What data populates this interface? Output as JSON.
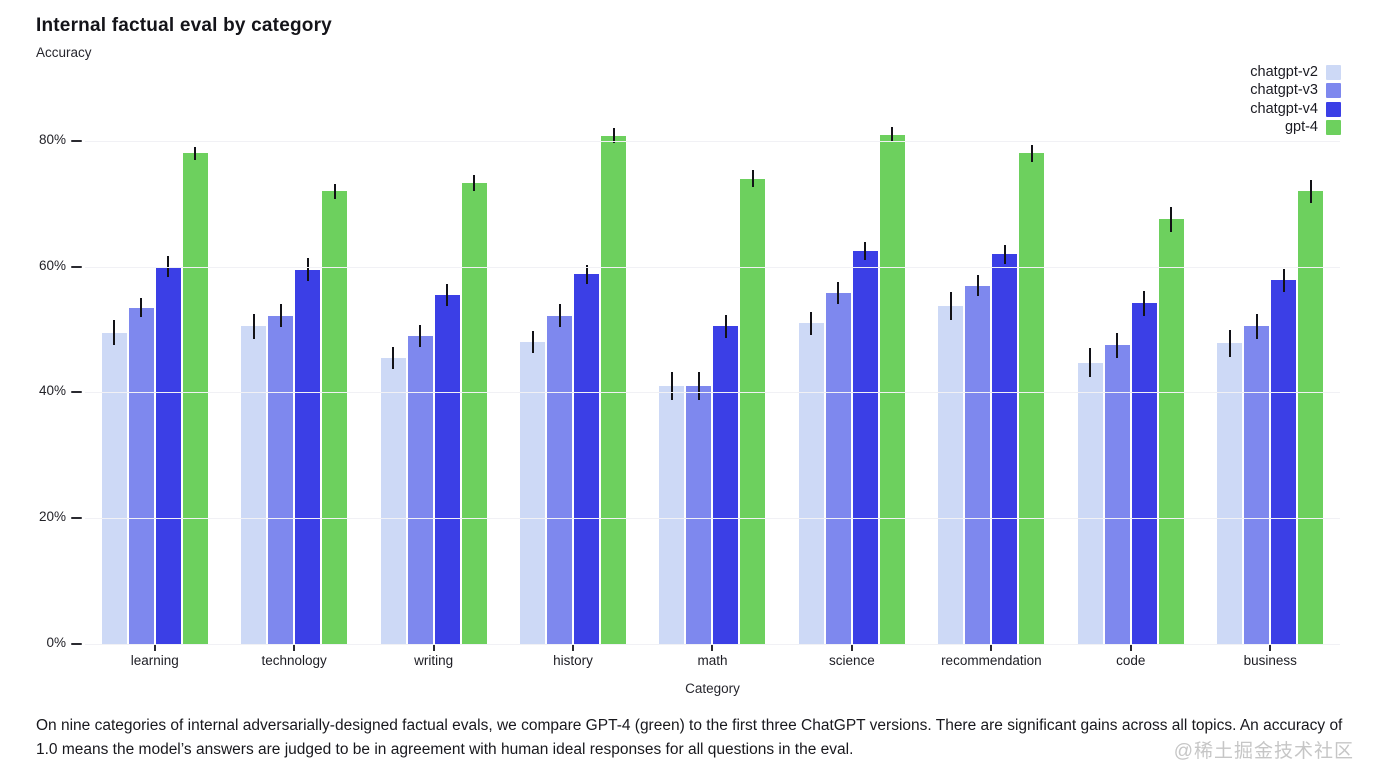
{
  "page": {
    "title": "Internal factual eval by category",
    "subtitle": "Accuracy",
    "caption": "On nine categories of internal adversarially-designed factual evals, we compare GPT-4 (green) to the first three ChatGPT versions. There are significant gains across all topics. An accuracy of 1.0 means the model’s answers are judged to be in agreement with human ideal responses for all questions in the eval.",
    "watermark": "@稀土掘金技术社区"
  },
  "colors": {
    "background": "#ffffff",
    "text": "#1a1a20",
    "gridline": "#f1f1f5",
    "error_bar": "#121217",
    "watermark": "#c6c6c6"
  },
  "chart_data": {
    "type": "bar",
    "title": "Internal factual eval by category",
    "ylabel": "Accuracy",
    "xlabel": "Category",
    "grid": true,
    "legend_position": "top-right",
    "ylim": [
      0,
      0.892
    ],
    "y_tick_values": [
      0,
      0.2,
      0.4,
      0.6,
      0.8
    ],
    "y_tick_labels": [
      "0%",
      "20%",
      "40%",
      "60%",
      "80%"
    ],
    "categories": [
      "learning",
      "technology",
      "writing",
      "history",
      "math",
      "science",
      "recommendation",
      "code",
      "business"
    ],
    "series": [
      {
        "name": "chatgpt-v2",
        "color": "#cdd9f6",
        "values": [
          0.495,
          0.505,
          0.455,
          0.48,
          0.41,
          0.51,
          0.537,
          0.447,
          0.478
        ],
        "errors": [
          0.02,
          0.02,
          0.017,
          0.018,
          0.022,
          0.018,
          0.022,
          0.023,
          0.022
        ]
      },
      {
        "name": "chatgpt-v3",
        "color": "#7e88ee",
        "values": [
          0.535,
          0.522,
          0.49,
          0.522,
          0.41,
          0.558,
          0.57,
          0.475,
          0.505
        ],
        "errors": [
          0.015,
          0.018,
          0.018,
          0.018,
          0.022,
          0.017,
          0.017,
          0.02,
          0.02
        ]
      },
      {
        "name": "chatgpt-v4",
        "color": "#3b3fe6",
        "values": [
          0.6,
          0.595,
          0.555,
          0.588,
          0.505,
          0.625,
          0.62,
          0.542,
          0.578
        ],
        "errors": [
          0.017,
          0.018,
          0.017,
          0.015,
          0.018,
          0.015,
          0.015,
          0.02,
          0.018
        ]
      },
      {
        "name": "gpt-4",
        "color": "#6dd05e",
        "values": [
          0.78,
          0.72,
          0.733,
          0.808,
          0.74,
          0.81,
          0.78,
          0.675,
          0.72
        ],
        "errors": [
          0.01,
          0.012,
          0.012,
          0.012,
          0.013,
          0.012,
          0.013,
          0.02,
          0.018
        ]
      }
    ]
  }
}
